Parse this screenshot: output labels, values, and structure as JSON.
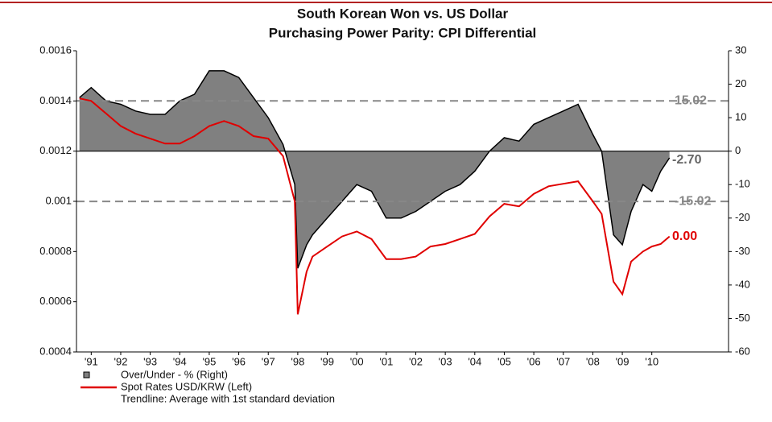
{
  "chart_data": {
    "type": "line",
    "title": "South Korean Won vs. US Dollar",
    "subtitle": "Purchasing Power Parity: CPI Differential",
    "x": [
      1990.6,
      1991.0,
      1991.5,
      1992.0,
      1992.5,
      1993.0,
      1993.5,
      1994.0,
      1994.5,
      1995.0,
      1995.5,
      1996.0,
      1996.5,
      1997.0,
      1997.5,
      1997.9,
      1998.0,
      1998.3,
      1998.5,
      1999.0,
      1999.5,
      2000.0,
      2000.5,
      2001.0,
      2001.5,
      2002.0,
      2002.5,
      2003.0,
      2003.5,
      2004.0,
      2004.5,
      2005.0,
      2005.5,
      2006.0,
      2006.5,
      2007.0,
      2007.5,
      2008.0,
      2008.3,
      2008.7,
      2009.0,
      2009.3,
      2009.7,
      2010.0,
      2010.3,
      2010.6
    ],
    "series": [
      {
        "name": "Over/Under - % (Right)",
        "color": "#808080",
        "axis": "y2",
        "style": "area",
        "values": [
          16,
          19,
          15,
          14,
          12,
          11,
          11,
          15,
          17,
          24,
          24,
          22,
          16,
          10,
          2,
          -10,
          -35,
          -28,
          -25,
          -20,
          -15,
          -10,
          -12,
          -20,
          -20,
          -18,
          -15,
          -12,
          -10,
          -6,
          0,
          4,
          3,
          8,
          10,
          12,
          14,
          5,
          0,
          -25,
          -28,
          -18,
          -10,
          -12,
          -6,
          -2
        ]
      },
      {
        "name": "Spot Rates USD/KRW  (Left)",
        "color": "#e00000",
        "axis": "y",
        "style": "line",
        "values": [
          0.00141,
          0.0014,
          0.00135,
          0.0013,
          0.00127,
          0.00125,
          0.00123,
          0.00123,
          0.00126,
          0.0013,
          0.00132,
          0.0013,
          0.00126,
          0.00125,
          0.00118,
          0.001,
          0.00055,
          0.00072,
          0.00078,
          0.00082,
          0.00086,
          0.00088,
          0.00085,
          0.00077,
          0.00077,
          0.00078,
          0.00082,
          0.00083,
          0.00085,
          0.00087,
          0.00094,
          0.00099,
          0.00098,
          0.00103,
          0.00106,
          0.00107,
          0.00108,
          0.001,
          0.00095,
          0.00068,
          0.00063,
          0.00076,
          0.0008,
          0.00082,
          0.00083,
          0.00086
        ]
      }
    ],
    "trendline_legend": "Trendline: Average with 1st standard deviation",
    "reference_lines": [
      {
        "value": 15.02,
        "style": "dashed",
        "axis": "y2",
        "color": "#888888"
      },
      {
        "value": 0,
        "style": "solid",
        "axis": "y2",
        "color": "#000000"
      },
      {
        "value": -15.02,
        "style": "dashed",
        "axis": "y2",
        "color": "#888888"
      }
    ],
    "annotations": [
      {
        "text": "-2.70",
        "y": -2.7,
        "axis": "y2",
        "color": "#666666"
      },
      {
        "text": "0.00",
        "series": 1,
        "color": "#e00000"
      }
    ],
    "xlim": [
      1990.5,
      2012.6
    ],
    "xticks": [
      {
        "value": 1991,
        "label": "'91"
      },
      {
        "value": 1992,
        "label": "'92"
      },
      {
        "value": 1993,
        "label": "'93"
      },
      {
        "value": 1994,
        "label": "'94"
      },
      {
        "value": 1995,
        "label": "'95"
      },
      {
        "value": 1996,
        "label": "'96"
      },
      {
        "value": 1997,
        "label": "'97"
      },
      {
        "value": 1998,
        "label": "'98"
      },
      {
        "value": 1999,
        "label": "'99"
      },
      {
        "value": 2000,
        "label": "'00"
      },
      {
        "value": 2001,
        "label": "'01"
      },
      {
        "value": 2002,
        "label": "'02"
      },
      {
        "value": 2003,
        "label": "'03"
      },
      {
        "value": 2004,
        "label": "'04"
      },
      {
        "value": 2005,
        "label": "'05"
      },
      {
        "value": 2006,
        "label": "'06"
      },
      {
        "value": 2007,
        "label": "'07"
      },
      {
        "value": 2008,
        "label": "'08"
      },
      {
        "value": 2009,
        "label": "'09"
      },
      {
        "value": 2010,
        "label": "'10"
      }
    ],
    "ylim": [
      0.0004,
      0.0016
    ],
    "yticks": [
      0.0004,
      0.0006,
      0.0008,
      0.001,
      0.0012,
      0.0014,
      0.0016
    ],
    "y2lim": [
      -60,
      30
    ],
    "y2ticks": [
      -60,
      -50,
      -40,
      -30,
      -20,
      -10,
      0,
      10,
      20,
      30
    ]
  }
}
